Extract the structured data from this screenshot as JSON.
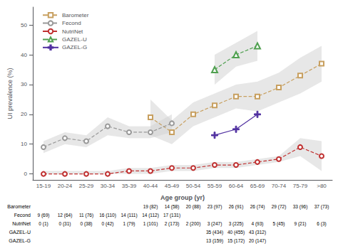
{
  "chart_data": {
    "type": "line",
    "categories": [
      "15-19",
      "20-24",
      "25-29",
      "30-34",
      "35-39",
      "40-44",
      "45-49",
      "50-54",
      "55-59",
      "60-64",
      "65-69",
      "70-74",
      "75-79",
      ">80"
    ],
    "series": [
      {
        "name": "Barometer",
        "color": "#c8a060",
        "marker": "square",
        "line_style": "dashed",
        "values": [
          null,
          null,
          null,
          null,
          null,
          19,
          14,
          20,
          23,
          26,
          26,
          29,
          33,
          37
        ],
        "ci_low": [
          null,
          null,
          null,
          null,
          null,
          13,
          10,
          16,
          19,
          22,
          21,
          24,
          27,
          31
        ],
        "ci_high": [
          null,
          null,
          null,
          null,
          null,
          25,
          18,
          24,
          27,
          30,
          31,
          34,
          39,
          43
        ]
      },
      {
        "name": "Fecond",
        "color": "#999999",
        "marker": "circle",
        "line_style": "dashed",
        "values": [
          9,
          12,
          11,
          16,
          14,
          14,
          17,
          null,
          null,
          null,
          null,
          null,
          null,
          null
        ],
        "ci_low": [
          7,
          10,
          9,
          13,
          12,
          12,
          14,
          null,
          null,
          null,
          null,
          null,
          null,
          null
        ],
        "ci_high": [
          11,
          14,
          13,
          19,
          16,
          16,
          20,
          null,
          null,
          null,
          null,
          null,
          null,
          null
        ]
      },
      {
        "name": "NutriNet",
        "color": "#c03030",
        "marker": "circle",
        "line_style": "dashed",
        "values": [
          0,
          0,
          0,
          0,
          1,
          1,
          2,
          2,
          3,
          3,
          4,
          5,
          9,
          6
        ],
        "ci_low": [
          0,
          0,
          0,
          0,
          0,
          0,
          1,
          1,
          2,
          2,
          3,
          4,
          6,
          1
        ],
        "ci_high": [
          1,
          1,
          1,
          1,
          2,
          2,
          3,
          3,
          4,
          4,
          5,
          6,
          12,
          11
        ]
      },
      {
        "name": "GAZEL-U",
        "color": "#50a050",
        "marker": "triangle",
        "line_style": "dashed",
        "values": [
          null,
          null,
          null,
          null,
          null,
          null,
          null,
          null,
          35,
          40,
          43,
          null,
          null,
          null
        ],
        "ci_low": [
          null,
          null,
          null,
          null,
          null,
          null,
          null,
          null,
          30,
          36,
          38,
          null,
          null,
          null
        ],
        "ci_high": [
          null,
          null,
          null,
          null,
          null,
          null,
          null,
          null,
          40,
          44,
          48,
          null,
          null,
          null
        ]
      },
      {
        "name": "GAZEL-G",
        "color": "#5030a0",
        "marker": "plus",
        "line_style": "solid",
        "values": [
          null,
          null,
          null,
          null,
          null,
          null,
          null,
          null,
          13,
          15,
          20,
          null,
          null,
          null
        ]
      }
    ],
    "xlabel": "Age group (yr)",
    "ylabel": "UI prevalence (%)",
    "ylim": [
      -2,
      56
    ],
    "yticks": [
      0,
      10,
      20,
      30,
      40,
      50
    ],
    "grid": false,
    "legend": "upper left",
    "table": {
      "rows": [
        "Barometer",
        "Fecond",
        "NutriNet",
        "GAZEL-U",
        "GAZEL-G"
      ],
      "cells": [
        [
          null,
          null,
          null,
          null,
          null,
          "19 (82)",
          "14 (58)",
          "20 (88)",
          "23 (97)",
          "26 (91)",
          "26 (74)",
          "29 (72)",
          "33 (96)",
          "37 (73)"
        ],
        [
          "9 (69)",
          "12 (64)",
          "11 (76)",
          "16 (110)",
          "14 (111)",
          "14 (112)",
          "17 (131)",
          null,
          null,
          null,
          null,
          null,
          null,
          null
        ],
        [
          "0 (1)",
          "0 (31)",
          "0 (38)",
          "0 (42)",
          "1 (79)",
          "1 (101)",
          "2 (173)",
          "2 (200)",
          "3 (247)",
          "3 (225)",
          "4 (93)",
          "5 (45)",
          "9 (21)",
          "6 (3)"
        ],
        [
          null,
          null,
          null,
          null,
          null,
          null,
          null,
          null,
          "35 (434)",
          "40 (455)",
          "43 (312)",
          null,
          null,
          null
        ],
        [
          null,
          null,
          null,
          null,
          null,
          null,
          null,
          null,
          "13 (159)",
          "15 (172)",
          "20 (147)",
          null,
          null,
          null
        ]
      ]
    }
  }
}
